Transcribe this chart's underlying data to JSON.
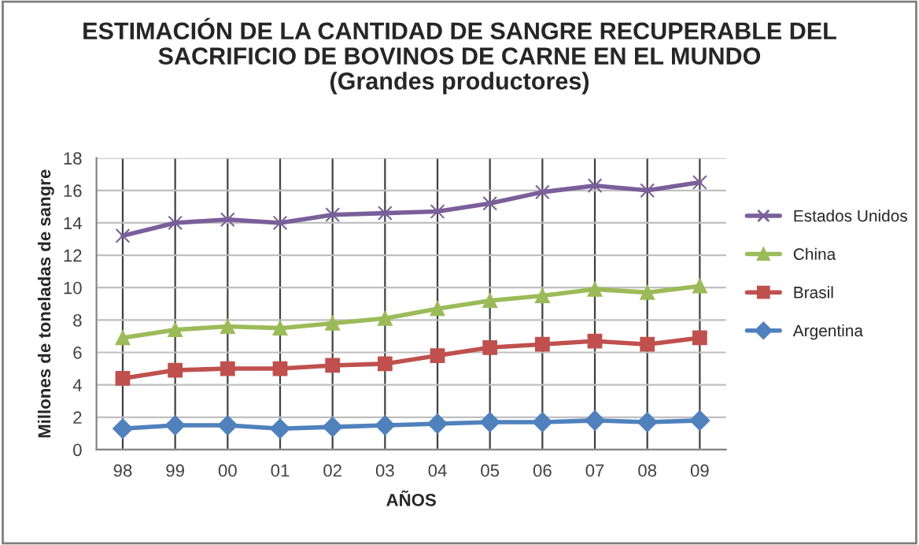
{
  "chart_data": {
    "type": "line",
    "title": "ESTIMACIÓN DE LA CANTIDAD DE SANGRE RECUPERABLE DEL\nSACRIFICIO DE BOVINOS DE CARNE EN EL MUNDO\n(Grandes productores)",
    "xlabel": "AÑOS",
    "ylabel": "Millones de toneladas de sangre",
    "categories": [
      "98",
      "99",
      "00",
      "01",
      "02",
      "03",
      "04",
      "05",
      "06",
      "07",
      "08",
      "09"
    ],
    "series": [
      {
        "name": "Estados Unidos",
        "color": "#7a5f9a",
        "marker": "cross",
        "values": [
          13.2,
          14.0,
          14.2,
          14.0,
          14.5,
          14.6,
          14.7,
          15.2,
          15.9,
          16.3,
          16.0,
          16.5
        ]
      },
      {
        "name": "China",
        "color": "#9bbb59",
        "marker": "triangle",
        "values": [
          6.9,
          7.4,
          7.6,
          7.5,
          7.8,
          8.1,
          8.7,
          9.2,
          9.5,
          9.9,
          9.7,
          10.1
        ]
      },
      {
        "name": "Brasil",
        "color": "#c0504d",
        "marker": "square",
        "values": [
          4.4,
          4.9,
          5.0,
          5.0,
          5.2,
          5.3,
          5.8,
          6.3,
          6.5,
          6.7,
          6.5,
          6.9
        ]
      },
      {
        "name": "Argentina",
        "color": "#4f81bd",
        "marker": "diamond",
        "values": [
          1.3,
          1.5,
          1.5,
          1.3,
          1.4,
          1.5,
          1.6,
          1.7,
          1.7,
          1.8,
          1.7,
          1.8
        ]
      }
    ],
    "ylim": [
      0,
      18
    ],
    "yticks": [
      0,
      2,
      4,
      6,
      8,
      10,
      12,
      14,
      16,
      18
    ],
    "grid": true,
    "legend": "right",
    "line_style": "solid"
  }
}
